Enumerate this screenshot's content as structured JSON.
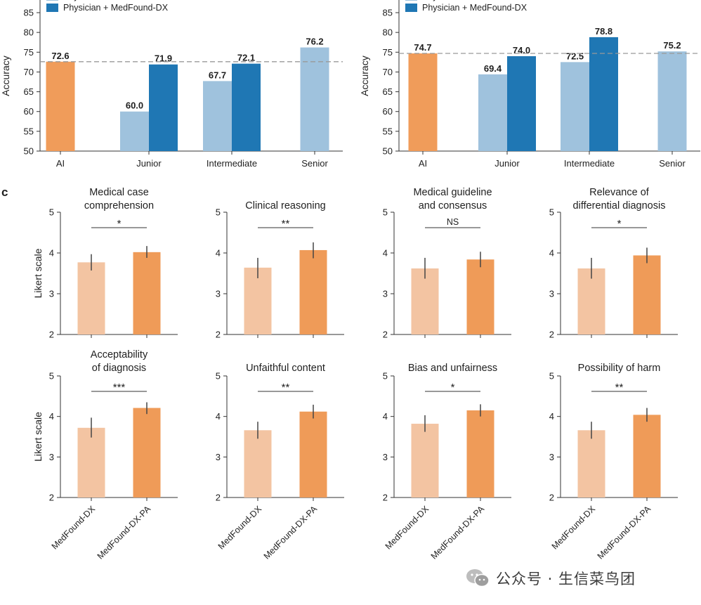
{
  "panel_c_label": "c",
  "watermark": {
    "text": "公众号 · 生信菜鸟团",
    "icon": "wechat-icon"
  },
  "colors": {
    "ai": "#f09c5a",
    "physician": "#9fc2dd",
    "physician_medfound": "#1f77b4",
    "medfound_dx": "#f3c4a2",
    "medfound_dx_pa": "#ef9b58",
    "axis": "#333333",
    "reference_line": "#999999",
    "error_bar": "#444444"
  },
  "chart_data": [
    {
      "type": "bar",
      "legend": [
        "Physician",
        "Physician + MedFound-DX"
      ],
      "categories": [
        "AI",
        "Junior",
        "Intermediate",
        "Senior"
      ],
      "ylabel": "Accuracy",
      "ylim": [
        50,
        88
      ],
      "yticks": [
        "50",
        "55",
        "60",
        "65",
        "70",
        "75",
        "80",
        "85"
      ],
      "reference_line": 72.6,
      "bars": [
        {
          "category": "AI",
          "series": "AI",
          "value": 72.6,
          "label": "72.6"
        },
        {
          "category": "Junior",
          "series": "Physician",
          "value": 60.0,
          "label": "60.0"
        },
        {
          "category": "Junior",
          "series": "Physician + MedFound-DX",
          "value": 71.9,
          "label": "71.9"
        },
        {
          "category": "Intermediate",
          "series": "Physician",
          "value": 67.7,
          "label": "67.7"
        },
        {
          "category": "Intermediate",
          "series": "Physician + MedFound-DX",
          "value": 72.1,
          "label": "72.1"
        },
        {
          "category": "Senior",
          "series": "Physician",
          "value": 76.2,
          "label": "76.2"
        }
      ]
    },
    {
      "type": "bar",
      "legend": [
        "Physician",
        "Physician + MedFound-DX"
      ],
      "categories": [
        "AI",
        "Junior",
        "Intermediate",
        "Senior"
      ],
      "ylabel": "Accuracy",
      "ylim": [
        50,
        88
      ],
      "yticks": [
        "50",
        "55",
        "60",
        "65",
        "70",
        "75",
        "80",
        "85"
      ],
      "reference_line": 74.7,
      "bars": [
        {
          "category": "AI",
          "series": "AI",
          "value": 74.7,
          "label": "74.7"
        },
        {
          "category": "Junior",
          "series": "Physician",
          "value": 69.4,
          "label": "69.4"
        },
        {
          "category": "Junior",
          "series": "Physician + MedFound-DX",
          "value": 74.0,
          "label": "74.0"
        },
        {
          "category": "Intermediate",
          "series": "Physician",
          "value": 72.5,
          "label": "72.5"
        },
        {
          "category": "Intermediate",
          "series": "Physician + MedFound-DX",
          "value": 78.8,
          "label": "78.8"
        },
        {
          "category": "Senior",
          "series": "Physician",
          "value": 75.2,
          "label": "75.2"
        }
      ]
    },
    {
      "type": "bar",
      "title": [
        "Medical case",
        "comprehension"
      ],
      "ylabel": "Likert scale",
      "ylim": [
        2,
        5
      ],
      "yticks": [
        "2",
        "3",
        "4",
        "5"
      ],
      "categories": [
        "MedFound-DX",
        "MedFound-DX-PA"
      ],
      "values": [
        3.77,
        4.02
      ],
      "error": [
        [
          3.57,
          3.97
        ],
        [
          3.88,
          4.17
        ]
      ],
      "significance": "*"
    },
    {
      "type": "bar",
      "title": [
        "Clinical reasoning"
      ],
      "ylabel": "",
      "ylim": [
        2,
        5
      ],
      "yticks": [
        "2",
        "3",
        "4",
        "5"
      ],
      "categories": [
        "MedFound-DX",
        "MedFound-DX-PA"
      ],
      "values": [
        3.64,
        4.07
      ],
      "error": [
        [
          3.38,
          3.88
        ],
        [
          3.87,
          4.26
        ]
      ],
      "significance": "**"
    },
    {
      "type": "bar",
      "title": [
        "Medical guideline",
        "and consensus"
      ],
      "ylabel": "",
      "ylim": [
        2,
        5
      ],
      "yticks": [
        "2",
        "3",
        "4",
        "5"
      ],
      "categories": [
        "MedFound-DX",
        "MedFound-DX-PA"
      ],
      "values": [
        3.62,
        3.84
      ],
      "error": [
        [
          3.37,
          3.88
        ],
        [
          3.65,
          4.03
        ]
      ],
      "significance": "NS"
    },
    {
      "type": "bar",
      "title": [
        "Relevance of",
        "differential diagnosis"
      ],
      "ylabel": "",
      "ylim": [
        2,
        5
      ],
      "yticks": [
        "2",
        "3",
        "4",
        "5"
      ],
      "categories": [
        "MedFound-DX",
        "MedFound-DX-PA"
      ],
      "values": [
        3.62,
        3.94
      ],
      "error": [
        [
          3.37,
          3.88
        ],
        [
          3.75,
          4.13
        ]
      ],
      "significance": "*"
    },
    {
      "type": "bar",
      "title": [
        "Acceptability",
        "of diagnosis"
      ],
      "ylabel": "Likert scale",
      "ylim": [
        2,
        5
      ],
      "yticks": [
        "2",
        "3",
        "4",
        "5"
      ],
      "categories": [
        "MedFound-DX",
        "MedFound-DX-PA"
      ],
      "values": [
        3.72,
        4.21
      ],
      "error": [
        [
          3.48,
          3.97
        ],
        [
          4.06,
          4.35
        ]
      ],
      "significance": "***"
    },
    {
      "type": "bar",
      "title": [
        "Unfaithful content"
      ],
      "ylabel": "",
      "ylim": [
        2,
        5
      ],
      "yticks": [
        "2",
        "3",
        "4",
        "5"
      ],
      "categories": [
        "MedFound-DX",
        "MedFound-DX-PA"
      ],
      "values": [
        3.66,
        4.12
      ],
      "error": [
        [
          3.45,
          3.87
        ],
        [
          3.95,
          4.29
        ]
      ],
      "significance": "**"
    },
    {
      "type": "bar",
      "title": [
        "Bias and unfairness"
      ],
      "ylabel": "",
      "ylim": [
        2,
        5
      ],
      "yticks": [
        "2",
        "3",
        "4",
        "5"
      ],
      "categories": [
        "MedFound-DX",
        "MedFound-DX-PA"
      ],
      "values": [
        3.82,
        4.15
      ],
      "error": [
        [
          3.62,
          4.03
        ],
        [
          4.0,
          4.3
        ]
      ],
      "significance": "*"
    },
    {
      "type": "bar",
      "title": [
        "Possibility of harm"
      ],
      "ylabel": "",
      "ylim": [
        2,
        5
      ],
      "yticks": [
        "2",
        "3",
        "4",
        "5"
      ],
      "categories": [
        "MedFound-DX",
        "MedFound-DX-PA"
      ],
      "values": [
        3.66,
        4.04
      ],
      "error": [
        [
          3.45,
          3.87
        ],
        [
          3.87,
          4.21
        ]
      ],
      "significance": "**"
    }
  ]
}
